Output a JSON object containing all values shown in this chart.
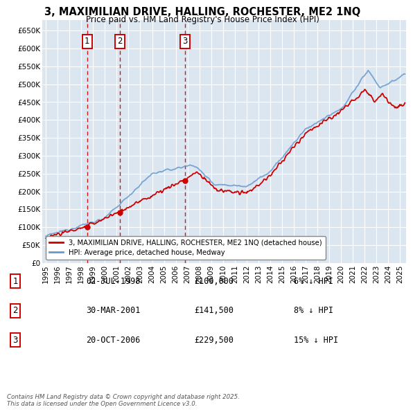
{
  "title": "3, MAXIMILIAN DRIVE, HALLING, ROCHESTER, ME2 1NQ",
  "subtitle": "Price paid vs. HM Land Registry's House Price Index (HPI)",
  "ylabel_ticks": [
    "£0",
    "£50K",
    "£100K",
    "£150K",
    "£200K",
    "£250K",
    "£300K",
    "£350K",
    "£400K",
    "£450K",
    "£500K",
    "£550K",
    "£600K",
    "£650K"
  ],
  "ytick_values": [
    0,
    50000,
    100000,
    150000,
    200000,
    250000,
    300000,
    350000,
    400000,
    450000,
    500000,
    550000,
    600000,
    650000
  ],
  "ylim": [
    0,
    680000
  ],
  "xlim_start": 1994.7,
  "xlim_end": 2025.5,
  "xtick_years": [
    1995,
    1996,
    1997,
    1998,
    1999,
    2000,
    2001,
    2002,
    2003,
    2004,
    2005,
    2006,
    2007,
    2008,
    2009,
    2010,
    2011,
    2012,
    2013,
    2014,
    2015,
    2016,
    2017,
    2018,
    2019,
    2020,
    2021,
    2022,
    2023,
    2024,
    2025
  ],
  "background_color": "#dce6f1",
  "grid_color": "#ffffff",
  "hpi_color": "#6699cc",
  "price_color": "#cc0000",
  "vline_color": "#cc0000",
  "sale_points": [
    {
      "year": 1998.5,
      "price": 100000,
      "label": "1"
    },
    {
      "year": 2001.25,
      "price": 141500,
      "label": "2"
    },
    {
      "year": 2006.8,
      "price": 229500,
      "label": "3"
    }
  ],
  "legend_label_red": "3, MAXIMILIAN DRIVE, HALLING, ROCHESTER, ME2 1NQ (detached house)",
  "legend_label_blue": "HPI: Average price, detached house, Medway",
  "footer": "Contains HM Land Registry data © Crown copyright and database right 2025.\nThis data is licensed under the Open Government Licence v3.0.",
  "table_entries": [
    {
      "num": "1",
      "date": "02-JUL-1998",
      "price": "£100,000",
      "pct": "6% ↓ HPI"
    },
    {
      "num": "2",
      "date": "30-MAR-2001",
      "price": "£141,500",
      "pct": "8% ↓ HPI"
    },
    {
      "num": "3",
      "date": "20-OCT-2006",
      "price": "£229,500",
      "pct": "15% ↓ HPI"
    }
  ]
}
